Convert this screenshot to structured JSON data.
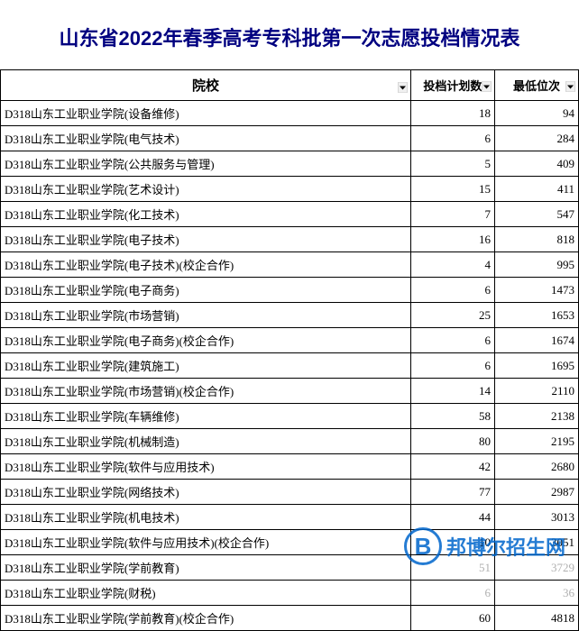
{
  "title": "山东省2022年春季高考专科批第一次志愿投档情况表",
  "table": {
    "headers": {
      "school": "院校",
      "plan": "投档计划数",
      "rank": "最低位次"
    },
    "rows": [
      {
        "school": "D318山东工业职业学院(设备维修)",
        "plan": "18",
        "rank": "94"
      },
      {
        "school": "D318山东工业职业学院(电气技术)",
        "plan": "6",
        "rank": "284"
      },
      {
        "school": "D318山东工业职业学院(公共服务与管理)",
        "plan": "5",
        "rank": "409"
      },
      {
        "school": "D318山东工业职业学院(艺术设计)",
        "plan": "15",
        "rank": "411"
      },
      {
        "school": "D318山东工业职业学院(化工技术)",
        "plan": "7",
        "rank": "547"
      },
      {
        "school": "D318山东工业职业学院(电子技术)",
        "plan": "16",
        "rank": "818"
      },
      {
        "school": "D318山东工业职业学院(电子技术)(校企合作)",
        "plan": "4",
        "rank": "995"
      },
      {
        "school": "D318山东工业职业学院(电子商务)",
        "plan": "6",
        "rank": "1473"
      },
      {
        "school": "D318山东工业职业学院(市场营销)",
        "plan": "25",
        "rank": "1653"
      },
      {
        "school": "D318山东工业职业学院(电子商务)(校企合作)",
        "plan": "6",
        "rank": "1674"
      },
      {
        "school": "D318山东工业职业学院(建筑施工)",
        "plan": "6",
        "rank": "1695"
      },
      {
        "school": "D318山东工业职业学院(市场营销)(校企合作)",
        "plan": "14",
        "rank": "2110"
      },
      {
        "school": "D318山东工业职业学院(车辆维修)",
        "plan": "58",
        "rank": "2138"
      },
      {
        "school": "D318山东工业职业学院(机械制造)",
        "plan": "80",
        "rank": "2195"
      },
      {
        "school": "D318山东工业职业学院(软件与应用技术)",
        "plan": "42",
        "rank": "2680"
      },
      {
        "school": "D318山东工业职业学院(网络技术)",
        "plan": "77",
        "rank": "2987"
      },
      {
        "school": "D318山东工业职业学院(机电技术)",
        "plan": "44",
        "rank": "3013"
      },
      {
        "school": "D318山东工业职业学院(软件与应用技术)(校企合作)",
        "plan": "10",
        "rank": "3051"
      },
      {
        "school": "D318山东工业职业学院(学前教育)",
        "plan": "51",
        "rank": "3729",
        "faded": true
      },
      {
        "school": "D318山东工业职业学院(财税)",
        "plan": "6",
        "rank": "36",
        "faded": true,
        "planHidden": true
      },
      {
        "school": "D318山东工业职业学院(学前教育)(校企合作)",
        "plan": "60",
        "rank": "4818"
      }
    ]
  },
  "watermark": {
    "logo": "B",
    "text": "邦博尔招生网"
  },
  "colors": {
    "title": "#000080",
    "border": "#000000",
    "watermark": "#0066cc",
    "faded": "#b0b0b0"
  }
}
